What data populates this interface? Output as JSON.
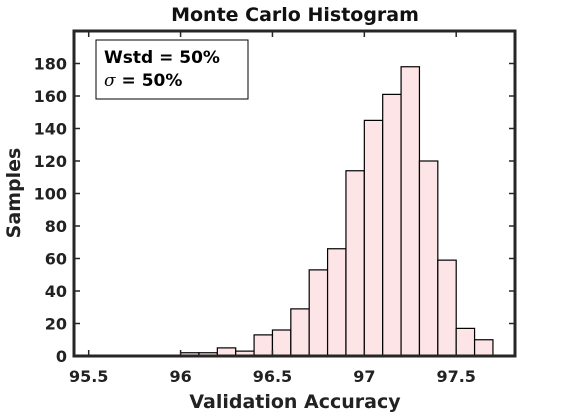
{
  "chart_data": {
    "type": "bar",
    "title": "Monte Carlo Histogram",
    "xlabel": "Validation Accuracy",
    "ylabel": "Samples",
    "xlim": [
      95.42,
      97.82
    ],
    "ylim": [
      0,
      200
    ],
    "xticks": [
      95.5,
      96,
      96.5,
      97,
      97.5
    ],
    "yticks": [
      0,
      20,
      40,
      60,
      80,
      100,
      120,
      140,
      160,
      180
    ],
    "bin_width": 0.1,
    "bins": [
      {
        "center": 96.05,
        "value": 2
      },
      {
        "center": 96.15,
        "value": 2
      },
      {
        "center": 96.25,
        "value": 5
      },
      {
        "center": 96.35,
        "value": 3
      },
      {
        "center": 96.45,
        "value": 13
      },
      {
        "center": 96.55,
        "value": 16
      },
      {
        "center": 96.65,
        "value": 29
      },
      {
        "center": 96.75,
        "value": 53
      },
      {
        "center": 96.85,
        "value": 66
      },
      {
        "center": 96.95,
        "value": 114
      },
      {
        "center": 97.05,
        "value": 145
      },
      {
        "center": 97.15,
        "value": 161
      },
      {
        "center": 97.25,
        "value": 178
      },
      {
        "center": 97.35,
        "value": 120
      },
      {
        "center": 97.45,
        "value": 59
      },
      {
        "center": 97.55,
        "value": 17
      },
      {
        "center": 97.65,
        "value": 10
      }
    ],
    "bar_fill": "#fde4e6",
    "bar_stroke": "#000000",
    "annotation": {
      "line1": "Wstd = 50%",
      "line2_symbol": "σ",
      "line2_rest": " = 50%",
      "placement": "top-left"
    },
    "grid": false
  }
}
